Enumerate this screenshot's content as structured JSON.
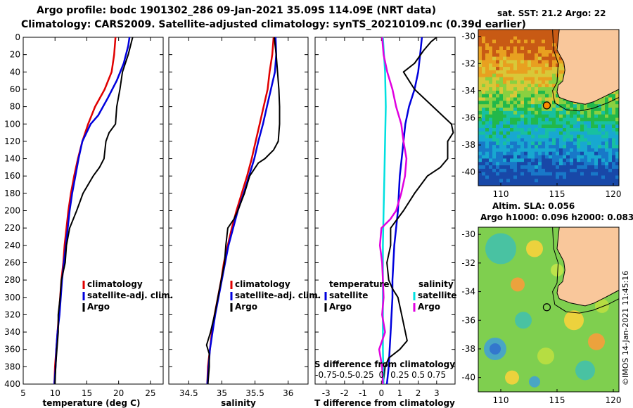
{
  "header": {
    "title_line1": "Argo profile: bodc 1901302_286 09-Jan-2021 35.09S 114.09E (NRT data)",
    "title_line2": "Climatology: CARS2009. Satellite-adjusted climatology: synTS_20210109.nc (0.39d earlier)"
  },
  "colors": {
    "climatology": "#e00000",
    "satellite": "#0000dd",
    "argo": "#000000",
    "salinity_diff": "#e000e0",
    "salinity_sat": "#00e0e0",
    "land": "#f9c79b"
  },
  "chart_data": [
    {
      "type": "line",
      "name": "temperature-profile",
      "xlabel": "temperature (deg C)",
      "ylabel": "",
      "xlim": [
        5,
        27
      ],
      "ylim": [
        400,
        0
      ],
      "xticks": [
        "5",
        "10",
        "15",
        "20",
        "25"
      ],
      "yticks": [
        "0",
        "20",
        "40",
        "60",
        "80",
        "100",
        "120",
        "140",
        "160",
        "180",
        "200",
        "220",
        "240",
        "260",
        "280",
        "300",
        "320",
        "340",
        "360",
        "380",
        "400"
      ],
      "legend": [
        "climatology",
        "satellite-adj. clim.",
        "Argo"
      ],
      "series": [
        {
          "name": "climatology",
          "color": "#e00000",
          "points": [
            [
              19.5,
              0
            ],
            [
              19.3,
              20
            ],
            [
              18.9,
              40
            ],
            [
              17.8,
              60
            ],
            [
              16.3,
              80
            ],
            [
              15.2,
              100
            ],
            [
              14.3,
              120
            ],
            [
              13.6,
              140
            ],
            [
              13.0,
              160
            ],
            [
              12.5,
              180
            ],
            [
              12.1,
              200
            ],
            [
              11.8,
              220
            ],
            [
              11.5,
              240
            ],
            [
              11.3,
              260
            ],
            [
              11.0,
              280
            ],
            [
              10.8,
              300
            ],
            [
              10.6,
              320
            ],
            [
              10.4,
              340
            ],
            [
              10.2,
              360
            ],
            [
              10.0,
              380
            ],
            [
              9.9,
              400
            ]
          ]
        },
        {
          "name": "satellite-adj. clim.",
          "color": "#0000dd",
          "points": [
            [
              21.7,
              0
            ],
            [
              21.5,
              10
            ],
            [
              20.8,
              30
            ],
            [
              19.7,
              50
            ],
            [
              18.3,
              70
            ],
            [
              16.8,
              90
            ],
            [
              15.6,
              100
            ],
            [
              14.3,
              120
            ],
            [
              13.7,
              140
            ],
            [
              13.2,
              160
            ],
            [
              12.7,
              180
            ],
            [
              12.3,
              200
            ],
            [
              12.0,
              220
            ],
            [
              11.7,
              240
            ],
            [
              11.4,
              260
            ],
            [
              11.1,
              280
            ],
            [
              10.9,
              300
            ],
            [
              10.7,
              320
            ],
            [
              10.4,
              340
            ],
            [
              10.2,
              360
            ],
            [
              10.1,
              380
            ],
            [
              9.9,
              400
            ]
          ]
        },
        {
          "name": "Argo",
          "color": "#000000",
          "points": [
            [
              22.2,
              0
            ],
            [
              21.5,
              20
            ],
            [
              20.6,
              40
            ],
            [
              20.2,
              60
            ],
            [
              19.7,
              80
            ],
            [
              19.5,
              100
            ],
            [
              18.5,
              110
            ],
            [
              18.0,
              120
            ],
            [
              17.7,
              140
            ],
            [
              17.0,
              150
            ],
            [
              16.0,
              160
            ],
            [
              14.4,
              180
            ],
            [
              13.4,
              200
            ],
            [
              12.3,
              220
            ],
            [
              11.8,
              240
            ],
            [
              11.6,
              260
            ],
            [
              11.0,
              280
            ],
            [
              10.8,
              300
            ],
            [
              10.5,
              320
            ],
            [
              10.5,
              340
            ],
            [
              10.3,
              360
            ],
            [
              10.1,
              380
            ],
            [
              10.0,
              400
            ]
          ]
        }
      ]
    },
    {
      "type": "line",
      "name": "salinity-profile",
      "xlabel": "salinity",
      "ylabel": "",
      "xlim": [
        34.2,
        36.3
      ],
      "ylim": [
        400,
        0
      ],
      "xticks": [
        "34.5",
        "35",
        "35.5",
        "36"
      ],
      "legend": [
        "climatology",
        "satellite-adj. clim.",
        "Argo"
      ],
      "series": [
        {
          "name": "climatology",
          "color": "#e00000",
          "points": [
            [
              35.78,
              0
            ],
            [
              35.76,
              20
            ],
            [
              35.72,
              40
            ],
            [
              35.69,
              60
            ],
            [
              35.63,
              80
            ],
            [
              35.57,
              100
            ],
            [
              35.51,
              120
            ],
            [
              35.45,
              140
            ],
            [
              35.38,
              160
            ],
            [
              35.3,
              180
            ],
            [
              35.22,
              200
            ],
            [
              35.15,
              220
            ],
            [
              35.09,
              240
            ],
            [
              35.03,
              260
            ],
            [
              34.99,
              280
            ],
            [
              34.94,
              300
            ],
            [
              34.89,
              320
            ],
            [
              34.85,
              340
            ],
            [
              34.82,
              360
            ],
            [
              34.79,
              380
            ],
            [
              34.78,
              400
            ]
          ]
        },
        {
          "name": "satellite-adj. clim.",
          "color": "#0000dd",
          "points": [
            [
              35.81,
              0
            ],
            [
              35.82,
              20
            ],
            [
              35.8,
              40
            ],
            [
              35.74,
              60
            ],
            [
              35.68,
              80
            ],
            [
              35.62,
              100
            ],
            [
              35.55,
              120
            ],
            [
              35.49,
              140
            ],
            [
              35.41,
              160
            ],
            [
              35.33,
              180
            ],
            [
              35.24,
              200
            ],
            [
              35.17,
              220
            ],
            [
              35.1,
              240
            ],
            [
              35.05,
              260
            ],
            [
              35.0,
              280
            ],
            [
              34.95,
              300
            ],
            [
              34.9,
              320
            ],
            [
              34.86,
              340
            ],
            [
              34.82,
              360
            ],
            [
              34.8,
              380
            ],
            [
              34.78,
              400
            ]
          ]
        },
        {
          "name": "Argo",
          "color": "#000000",
          "points": [
            [
              35.79,
              0
            ],
            [
              35.82,
              20
            ],
            [
              35.84,
              40
            ],
            [
              35.86,
              60
            ],
            [
              35.87,
              80
            ],
            [
              35.87,
              100
            ],
            [
              35.85,
              120
            ],
            [
              35.78,
              130
            ],
            [
              35.65,
              140
            ],
            [
              35.55,
              145
            ],
            [
              35.42,
              160
            ],
            [
              35.34,
              180
            ],
            [
              35.24,
              200
            ],
            [
              35.18,
              210
            ],
            [
              35.09,
              220
            ],
            [
              35.06,
              240
            ],
            [
              35.04,
              260
            ],
            [
              34.99,
              280
            ],
            [
              34.94,
              300
            ],
            [
              34.89,
              320
            ],
            [
              34.83,
              340
            ],
            [
              34.77,
              355
            ],
            [
              34.81,
              365
            ],
            [
              34.81,
              380
            ],
            [
              34.79,
              400
            ]
          ]
        }
      ]
    },
    {
      "type": "line",
      "name": "difference-profile",
      "xlabel": "T difference from climatology",
      "top_xlabel": "S difference from climatology",
      "xlim": [
        -3.6,
        4.0
      ],
      "ylim": [
        400,
        0
      ],
      "xticks": [
        "-3",
        "-2",
        "-1",
        "0",
        "1",
        "2",
        "3"
      ],
      "top_xticks": [
        "-0.75",
        "-0.5",
        "-0.25",
        "0",
        "0.25",
        "0.5",
        "0.75"
      ],
      "legend_temperature": {
        "title": "temperature",
        "items": [
          "satellite",
          "Argo"
        ]
      },
      "legend_salinity": {
        "title": "salinity",
        "items": [
          "satellite",
          "Argo"
        ]
      },
      "series": [
        {
          "name": "T satellite",
          "color": "#0000dd",
          "points": [
            [
              2.2,
              0
            ],
            [
              2.1,
              20
            ],
            [
              2.0,
              40
            ],
            [
              1.8,
              60
            ],
            [
              1.5,
              80
            ],
            [
              1.3,
              100
            ],
            [
              1.2,
              120
            ],
            [
              1.1,
              140
            ],
            [
              1.0,
              160
            ],
            [
              0.9,
              200
            ],
            [
              0.8,
              220
            ],
            [
              0.7,
              240
            ],
            [
              0.6,
              280
            ],
            [
              0.6,
              300
            ],
            [
              0.55,
              320
            ],
            [
              0.5,
              340
            ],
            [
              0.45,
              360
            ],
            [
              0.4,
              380
            ],
            [
              0.3,
              400
            ]
          ]
        },
        {
          "name": "T Argo",
          "color": "#000000",
          "points": [
            [
              3.0,
              0
            ],
            [
              2.7,
              5
            ],
            [
              2.3,
              15
            ],
            [
              1.8,
              30
            ],
            [
              1.2,
              40
            ],
            [
              1.8,
              60
            ],
            [
              2.8,
              80
            ],
            [
              3.8,
              100
            ],
            [
              3.9,
              110
            ],
            [
              3.6,
              120
            ],
            [
              3.6,
              140
            ],
            [
              3.2,
              150
            ],
            [
              2.5,
              160
            ],
            [
              1.8,
              180
            ],
            [
              1.2,
              200
            ],
            [
              0.5,
              220
            ],
            [
              0.5,
              240
            ],
            [
              0.3,
              260
            ],
            [
              0.4,
              280
            ],
            [
              0.6,
              290
            ],
            [
              0.9,
              300
            ],
            [
              1.1,
              320
            ],
            [
              1.2,
              330
            ],
            [
              1.4,
              350
            ],
            [
              1.0,
              360
            ],
            [
              0.4,
              370
            ],
            [
              0.2,
              380
            ],
            [
              0.1,
              400
            ]
          ]
        },
        {
          "name": "S satellite",
          "color": "#00e0e0",
          "points": [
            [
              0.02,
              0
            ],
            [
              0.05,
              40
            ],
            [
              0.06,
              80
            ],
            [
              0.05,
              120
            ],
            [
              0.04,
              160
            ],
            [
              0.03,
              200
            ],
            [
              0.02,
              240
            ],
            [
              0.02,
              280
            ],
            [
              0.02,
              320
            ],
            [
              0.02,
              360
            ],
            [
              0.03,
              400
            ]
          ]
        },
        {
          "name": "S Argo",
          "color": "#e000e0",
          "points": [
            [
              0.01,
              0
            ],
            [
              0.03,
              20
            ],
            [
              0.08,
              40
            ],
            [
              0.15,
              60
            ],
            [
              0.2,
              80
            ],
            [
              0.27,
              100
            ],
            [
              0.3,
              120
            ],
            [
              0.34,
              140
            ],
            [
              0.32,
              160
            ],
            [
              0.27,
              180
            ],
            [
              0.2,
              200
            ],
            [
              0.12,
              210
            ],
            [
              0.0,
              220
            ],
            [
              -0.02,
              240
            ],
            [
              0.01,
              260
            ],
            [
              0.02,
              280
            ],
            [
              0.03,
              300
            ],
            [
              0.01,
              320
            ],
            [
              0.05,
              340
            ],
            [
              -0.03,
              360
            ],
            [
              0.01,
              380
            ],
            [
              0.02,
              400
            ]
          ]
        }
      ]
    },
    {
      "type": "heatmap",
      "name": "sst-map",
      "title": "sat. SST: 21.2 Argo: 22",
      "xlim": [
        108,
        120.5
      ],
      "ylim": [
        -41,
        -29.5
      ],
      "xticks": [
        "110",
        "115",
        "120"
      ],
      "yticks": [
        "-30",
        "-32",
        "-34",
        "-36",
        "-38",
        "-40"
      ],
      "marker": {
        "lon": 114.09,
        "lat": -35.09
      }
    },
    {
      "type": "heatmap",
      "name": "sla-map",
      "title": "Altim. SLA: 0.056",
      "subtitle": "Argo h1000: 0.096 h2000: 0.083",
      "xlim": [
        108,
        120.5
      ],
      "ylim": [
        -41,
        -29.5
      ],
      "xticks": [
        "110",
        "115",
        "120"
      ],
      "yticks": [
        "-30",
        "-32",
        "-34",
        "-36",
        "-38",
        "-40"
      ],
      "marker": {
        "lon": 114.09,
        "lat": -35.09
      }
    }
  ],
  "credit": "©IMOS 14-Jan-2021 11:45:16"
}
